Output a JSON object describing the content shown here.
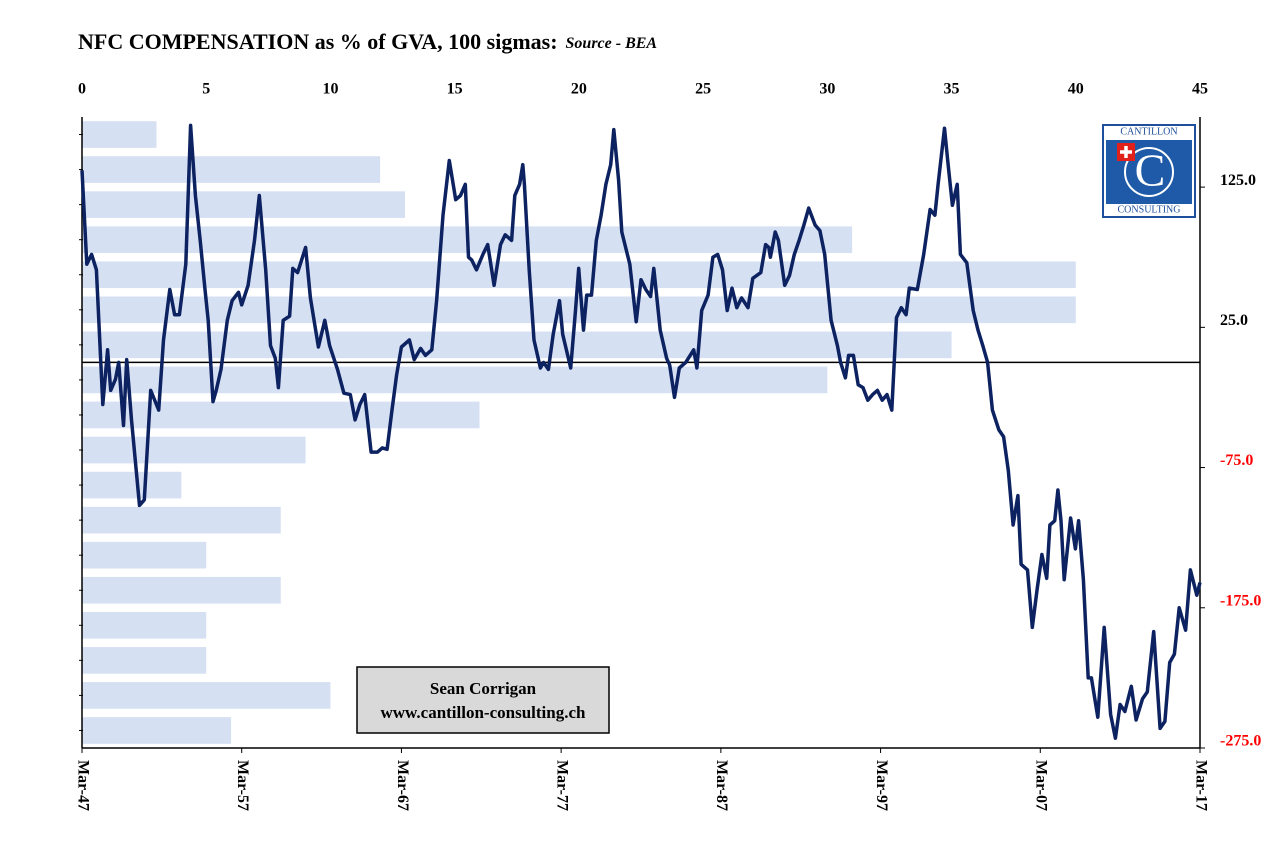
{
  "chart_data": [
    {
      "type": "line",
      "title": "NFC COMPENSATION as % of GVA, 100 sigmas:",
      "subtitle": "Source - BEA",
      "annotation": [
        "Sean Corrigan",
        "www.cantillon-consulting.ch"
      ],
      "logo": {
        "top": "CANTILLON",
        "letter": "C",
        "bottom": "CONSULTING"
      },
      "x": [
        1947.2,
        1947.5,
        1947.8,
        1948.1,
        1948.5,
        1948.8,
        1949.0,
        1949.3,
        1949.5,
        1949.8,
        1950.0,
        1950.3,
        1950.8,
        1951.1,
        1951.5,
        1952.0,
        1952.3,
        1952.7,
        1953.0,
        1953.3,
        1953.7,
        1954.0,
        1954.3,
        1954.6,
        1954.9,
        1955.1,
        1955.4,
        1955.6,
        1955.9,
        1956.3,
        1956.6,
        1957.0,
        1957.2,
        1957.6,
        1958.0,
        1958.3,
        1958.7,
        1959.0,
        1959.3,
        1959.5,
        1959.8,
        1960.2,
        1960.4,
        1960.7,
        1961.2,
        1961.5,
        1962.0,
        1962.4,
        1962.7,
        1963.2,
        1963.6,
        1964.0,
        1964.3,
        1964.6,
        1964.9,
        1965.3,
        1965.7,
        1966.0,
        1966.3,
        1966.6,
        1966.9,
        1967.2,
        1967.7,
        1968.0,
        1968.4,
        1968.7,
        1969.1,
        1969.4,
        1969.8,
        1970.2,
        1970.6,
        1970.9,
        1971.2,
        1971.4,
        1971.6,
        1971.9,
        1972.3,
        1972.6,
        1973.0,
        1973.4,
        1973.7,
        1974.1,
        1974.3,
        1974.6,
        1974.8,
        1974.9,
        1975.2,
        1975.5,
        1975.9,
        1976.1,
        1976.4,
        1976.7,
        1977.1,
        1977.3,
        1977.8,
        1978.1,
        1978.3,
        1978.6,
        1978.8,
        1979.1,
        1979.4,
        1979.7,
        1980.0,
        1980.3,
        1980.5,
        1980.8,
        1981.0,
        1981.5,
        1981.9,
        1982.2,
        1982.5,
        1982.8,
        1983.0,
        1983.4,
        1983.8,
        1984.0,
        1984.3,
        1984.6,
        1985.0,
        1985.5,
        1985.7,
        1986.0,
        1986.4,
        1986.7,
        1987.0,
        1987.3,
        1987.6,
        1987.9,
        1988.2,
        1988.5,
        1988.9,
        1989.2,
        1989.7,
        1990.0,
        1990.2,
        1990.3,
        1990.6,
        1990.8,
        1991.2,
        1991.5,
        1991.8,
        1992.1,
        1992.4,
        1992.7,
        1993.1,
        1993.4,
        1993.7,
        1994.1,
        1994.5,
        1994.7,
        1995.0,
        1995.2,
        1995.5,
        1995.8,
        1996.1,
        1996.4,
        1996.7,
        1997.0,
        1997.3,
        1997.6,
        1997.9,
        1998.2,
        1998.5,
        1998.8,
        1999.0,
        1999.5,
        1999.9,
        2000.3,
        2000.6,
        2000.8,
        2001.2,
        2001.4,
        2001.7,
        2002.0,
        2002.2,
        2002.6,
        2003.0,
        2003.3,
        2003.6,
        2003.9,
        2004.2,
        2004.6,
        2004.9,
        2005.2,
        2005.5,
        2005.8,
        2006.0,
        2006.4,
        2006.7,
        2007.0,
        2007.3,
        2007.6,
        2007.8,
        2008.1,
        2008.3,
        2008.5,
        2008.7,
        2009.1,
        2009.4,
        2009.6,
        2009.9,
        2010.2,
        2010.4,
        2010.8,
        2011.2,
        2011.6,
        2011.9,
        2012.2,
        2012.5,
        2012.9,
        2013.2,
        2013.6,
        2013.9,
        2014.3,
        2014.7,
        2015.0,
        2015.3,
        2015.6,
        2015.9,
        2016.3,
        2016.6,
        2017.0,
        2017.2
      ],
      "series": [
        {
          "name": "NFC compensation",
          "color": "#0d2260",
          "values": [
            137,
            70,
            77,
            66,
            -30,
            9,
            -20,
            -12,
            0,
            -45,
            2,
            -41,
            -102,
            -98,
            -20,
            -34,
            16,
            52,
            34,
            34,
            70,
            169,
            119,
            87,
            52,
            30,
            -28,
            -20,
            -5,
            30,
            44,
            50,
            41,
            55,
            87,
            119,
            66,
            12,
            3,
            -18,
            30,
            33,
            67,
            64,
            82,
            46,
            11,
            30,
            12,
            -5,
            -22,
            -23,
            -41,
            -30,
            -23,
            -64,
            -64,
            -61,
            -62,
            -35,
            -9,
            11,
            16,
            2,
            10,
            5,
            9,
            44,
            105,
            144,
            116,
            119,
            127,
            75,
            73,
            66,
            77,
            84,
            55,
            84,
            91,
            87,
            119,
            127,
            141,
            127,
            66,
            16,
            -4,
            0,
            -5,
            20,
            44,
            20,
            -4,
            37,
            67,
            23,
            48,
            48,
            87,
            105,
            127,
            141,
            166,
            130,
            93,
            70,
            29,
            59,
            52,
            47,
            67,
            23,
            3,
            -2,
            -25,
            -4,
            0,
            9,
            -4,
            37,
            48,
            75,
            77,
            66,
            37,
            53,
            39,
            46,
            39,
            60,
            64,
            84,
            82,
            75,
            93,
            87,
            55,
            62,
            77,
            87,
            98,
            110,
            98,
            94,
            77,
            30,
            12,
            0,
            -11,
            5,
            5,
            -16,
            -18,
            -27,
            -23,
            -20,
            -27,
            -23,
            -34,
            32,
            39,
            34,
            53,
            52,
            77,
            109,
            105,
            127,
            167,
            144,
            112,
            127,
            77,
            71,
            37,
            23,
            12,
            0,
            -34,
            -48,
            -53,
            -77,
            -116,
            -95,
            -144,
            -148,
            -189,
            -162,
            -137,
            -154,
            -116,
            -113,
            -91,
            -113,
            -155,
            -111,
            -133,
            -113,
            -155,
            -225,
            -225,
            -253,
            -189,
            -251,
            -268,
            -244,
            -249,
            -231,
            -255,
            -240,
            -235,
            -192,
            -261,
            -256,
            -214,
            -208,
            -175,
            -191,
            -148,
            -166,
            -157
          ]
        }
      ],
      "xlim": [
        1947.2,
        2017.2
      ],
      "xticks": [
        {
          "value": 1947.2,
          "label": "Mar-47"
        },
        {
          "value": 1957.2,
          "label": "Mar-57"
        },
        {
          "value": 1967.2,
          "label": "Mar-67"
        },
        {
          "value": 1977.2,
          "label": "Mar-77"
        },
        {
          "value": 1987.2,
          "label": "Mar-87"
        },
        {
          "value": 1997.2,
          "label": "Mar-97"
        },
        {
          "value": 2007.2,
          "label": "Mar-07"
        },
        {
          "value": 2017.2,
          "label": "Mar-17"
        }
      ],
      "ylim": [
        -275,
        175
      ],
      "yticks": [
        {
          "value": 125,
          "label": "125.0"
        },
        {
          "value": 25,
          "label": "25.0"
        },
        {
          "value": -75,
          "label": "-75.0"
        },
        {
          "value": -175,
          "label": "-175.0"
        },
        {
          "value": -275,
          "label": "-275.0"
        }
      ],
      "negative_tick_color": "#ff0000"
    },
    {
      "type": "histogram",
      "orientation": "horizontal",
      "color": "#d6e0f3",
      "bins": [
        175,
        150,
        125,
        100,
        75,
        50,
        25,
        0,
        -25,
        -50,
        -75,
        -100,
        -125,
        -150,
        -175,
        -200,
        -225,
        -250,
        -275
      ],
      "counts": [
        3,
        12,
        13,
        31,
        40,
        40,
        35,
        30,
        16,
        9,
        4,
        8,
        5,
        8,
        5,
        5,
        10,
        6
      ],
      "xlim": [
        0,
        45
      ],
      "xticks": [
        0,
        5,
        10,
        15,
        20,
        25,
        30,
        35,
        40,
        45
      ]
    }
  ]
}
